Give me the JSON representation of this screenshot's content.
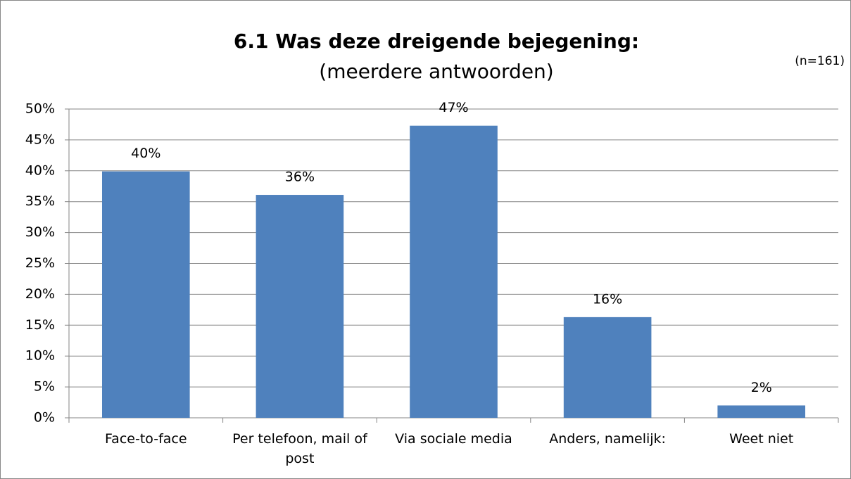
{
  "chart_data": {
    "type": "bar",
    "title": "6.1 Was deze dreigende bejegening:",
    "subtitle": "(meerdere antwoorden)",
    "annotation": "(n=161)",
    "categories": [
      "Face-to-face",
      "Per telefoon, mail of post",
      "Via sociale media",
      "Anders, namelijk:",
      "Weet niet"
    ],
    "values": [
      39.9,
      36.1,
      47.3,
      16.3,
      2.0
    ],
    "value_labels": [
      "40%",
      "36%",
      "47%",
      "16%",
      "2%"
    ],
    "color": "#4f81bd",
    "ylim": [
      0,
      50
    ],
    "yticks": [
      {
        "value": 0,
        "label": "0%"
      },
      {
        "value": 5,
        "label": "5%"
      },
      {
        "value": 10,
        "label": "10%"
      },
      {
        "value": 15,
        "label": "15%"
      },
      {
        "value": 20,
        "label": "20%"
      },
      {
        "value": 25,
        "label": "25%"
      },
      {
        "value": 30,
        "label": "30%"
      },
      {
        "value": 35,
        "label": "35%"
      },
      {
        "value": 40,
        "label": "40%"
      },
      {
        "value": 45,
        "label": "45%"
      },
      {
        "value": 50,
        "label": "50%"
      }
    ],
    "grid": true
  }
}
